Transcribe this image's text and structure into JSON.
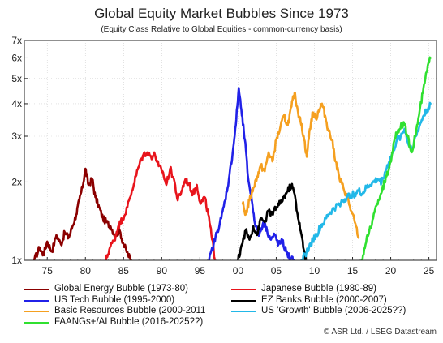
{
  "chart_data": {
    "type": "line",
    "title": "Global Equity Market Bubbles Since 1973",
    "subtitle": "(Equity Class Relative to Global Equities - common-currency basis)",
    "y_scale": "log",
    "ylim": [
      1,
      7
    ],
    "y_ticks": [
      "1x",
      "2x",
      "3x",
      "4x",
      "5x",
      "6x",
      "7x"
    ],
    "y_tick_values": [
      1,
      2,
      3,
      4,
      5,
      6,
      7
    ],
    "xlim": [
      1972,
      2026
    ],
    "x_ticks": [
      "75",
      "80",
      "85",
      "90",
      "95",
      "00",
      "05",
      "10",
      "15",
      "20",
      "25"
    ],
    "x_tick_values": [
      1975,
      1980,
      1985,
      1990,
      1995,
      2000,
      2005,
      2010,
      2015,
      2020,
      2025
    ],
    "grid": true,
    "series": [
      {
        "name": "Global Energy Bubble (1973-80)",
        "color": "#8b0000",
        "points": [
          [
            1973.3,
            1.0
          ],
          [
            1974.0,
            1.12
          ],
          [
            1974.5,
            1.05
          ],
          [
            1975.0,
            1.18
          ],
          [
            1975.6,
            1.08
          ],
          [
            1976.2,
            1.25
          ],
          [
            1976.8,
            1.15
          ],
          [
            1977.3,
            1.28
          ],
          [
            1977.8,
            1.22
          ],
          [
            1978.3,
            1.35
          ],
          [
            1978.8,
            1.5
          ],
          [
            1979.2,
            1.7
          ],
          [
            1979.6,
            1.9
          ],
          [
            1980.0,
            2.25
          ],
          [
            1980.4,
            1.95
          ],
          [
            1980.9,
            2.05
          ],
          [
            1981.3,
            1.75
          ],
          [
            1981.8,
            1.6
          ],
          [
            1982.3,
            1.45
          ],
          [
            1982.8,
            1.4
          ],
          [
            1983.3,
            1.35
          ],
          [
            1983.9,
            1.25
          ],
          [
            1984.5,
            1.3
          ],
          [
            1985.0,
            1.15
          ],
          [
            1985.6,
            1.05
          ],
          [
            1986.0,
            1.0
          ]
        ]
      },
      {
        "name": "Japanese Bubble (1980-89)",
        "color": "#e8141c",
        "points": [
          [
            1982.7,
            1.0
          ],
          [
            1983.2,
            1.12
          ],
          [
            1983.8,
            1.2
          ],
          [
            1984.3,
            1.35
          ],
          [
            1984.9,
            1.45
          ],
          [
            1985.5,
            1.6
          ],
          [
            1986.1,
            1.85
          ],
          [
            1986.6,
            2.1
          ],
          [
            1987.1,
            2.35
          ],
          [
            1987.6,
            2.55
          ],
          [
            1988.1,
            2.6
          ],
          [
            1988.6,
            2.5
          ],
          [
            1989.1,
            2.55
          ],
          [
            1989.6,
            2.3
          ],
          [
            1990.1,
            2.2
          ],
          [
            1990.6,
            1.95
          ],
          [
            1991.1,
            2.25
          ],
          [
            1991.6,
            2.05
          ],
          [
            1992.1,
            1.7
          ],
          [
            1992.6,
            1.85
          ],
          [
            1993.1,
            2.05
          ],
          [
            1993.6,
            1.95
          ],
          [
            1994.1,
            1.8
          ],
          [
            1994.6,
            1.95
          ],
          [
            1995.1,
            1.65
          ],
          [
            1995.6,
            1.75
          ],
          [
            1996.1,
            1.5
          ],
          [
            1996.6,
            1.2
          ],
          [
            1997.0,
            1.0
          ]
        ]
      },
      {
        "name": "US Tech Bubble (1995-2000)",
        "color": "#2121e8",
        "points": [
          [
            1996.2,
            1.0
          ],
          [
            1996.8,
            1.15
          ],
          [
            1997.3,
            1.3
          ],
          [
            1997.8,
            1.45
          ],
          [
            1998.3,
            1.7
          ],
          [
            1998.8,
            2.05
          ],
          [
            1999.3,
            2.6
          ],
          [
            1999.7,
            3.3
          ],
          [
            2000.1,
            4.6
          ],
          [
            2000.5,
            3.6
          ],
          [
            2000.9,
            2.9
          ],
          [
            2001.3,
            2.1
          ],
          [
            2001.8,
            1.7
          ],
          [
            2002.3,
            1.35
          ],
          [
            2002.8,
            1.25
          ],
          [
            2003.3,
            1.4
          ],
          [
            2003.8,
            1.3
          ],
          [
            2004.3,
            1.2
          ],
          [
            2004.8,
            1.25
          ],
          [
            2005.3,
            1.15
          ],
          [
            2005.8,
            1.18
          ],
          [
            2006.3,
            1.08
          ],
          [
            2006.8,
            1.02
          ],
          [
            2007.3,
            1.0
          ]
        ]
      },
      {
        "name": "EZ Banks Bubble (2000-2007)",
        "color": "#000000",
        "points": [
          [
            2000.0,
            1.0
          ],
          [
            2000.5,
            1.15
          ],
          [
            2001.0,
            1.3
          ],
          [
            2001.5,
            1.2
          ],
          [
            2002.0,
            1.35
          ],
          [
            2002.5,
            1.25
          ],
          [
            2003.0,
            1.45
          ],
          [
            2003.5,
            1.4
          ],
          [
            2004.0,
            1.55
          ],
          [
            2004.5,
            1.5
          ],
          [
            2005.0,
            1.6
          ],
          [
            2005.5,
            1.65
          ],
          [
            2006.0,
            1.75
          ],
          [
            2006.5,
            1.85
          ],
          [
            2007.0,
            1.95
          ],
          [
            2007.4,
            1.8
          ],
          [
            2007.8,
            1.5
          ],
          [
            2008.2,
            1.3
          ],
          [
            2008.6,
            1.1
          ],
          [
            2008.9,
            1.0
          ]
        ]
      },
      {
        "name": "Basic Resources Bubble (2000-2011",
        "color": "#f5a020",
        "points": [
          [
            2000.6,
            1.65
          ],
          [
            2001.0,
            1.5
          ],
          [
            2001.5,
            1.7
          ],
          [
            2002.0,
            1.9
          ],
          [
            2002.5,
            2.1
          ],
          [
            2003.0,
            2.3
          ],
          [
            2003.5,
            2.2
          ],
          [
            2004.0,
            2.6
          ],
          [
            2004.5,
            2.4
          ],
          [
            2005.0,
            2.9
          ],
          [
            2005.5,
            3.2
          ],
          [
            2006.0,
            3.6
          ],
          [
            2006.5,
            3.3
          ],
          [
            2007.0,
            3.9
          ],
          [
            2007.4,
            4.4
          ],
          [
            2007.8,
            3.8
          ],
          [
            2008.2,
            3.4
          ],
          [
            2008.6,
            3.0
          ],
          [
            2009.0,
            2.5
          ],
          [
            2009.4,
            3.2
          ],
          [
            2009.8,
            3.7
          ],
          [
            2010.2,
            3.5
          ],
          [
            2010.6,
            3.8
          ],
          [
            2011.0,
            4.0
          ],
          [
            2011.4,
            3.6
          ],
          [
            2011.8,
            3.2
          ],
          [
            2012.3,
            2.9
          ],
          [
            2012.8,
            2.4
          ],
          [
            2013.3,
            2.05
          ],
          [
            2013.8,
            1.9
          ],
          [
            2014.3,
            1.75
          ],
          [
            2014.8,
            1.55
          ],
          [
            2015.3,
            1.4
          ],
          [
            2015.8,
            1.22
          ]
        ]
      },
      {
        "name": "US 'Growth' Bubble (2006-2025??)",
        "color": "#22b8e8",
        "points": [
          [
            2008.3,
            1.0
          ],
          [
            2008.8,
            1.05
          ],
          [
            2009.3,
            1.12
          ],
          [
            2009.8,
            1.2
          ],
          [
            2010.3,
            1.25
          ],
          [
            2010.8,
            1.35
          ],
          [
            2011.3,
            1.4
          ],
          [
            2011.8,
            1.5
          ],
          [
            2012.3,
            1.55
          ],
          [
            2012.8,
            1.6
          ],
          [
            2013.3,
            1.65
          ],
          [
            2013.8,
            1.7
          ],
          [
            2014.3,
            1.75
          ],
          [
            2014.8,
            1.78
          ],
          [
            2015.3,
            1.8
          ],
          [
            2015.8,
            1.85
          ],
          [
            2016.3,
            1.8
          ],
          [
            2016.8,
            1.9
          ],
          [
            2017.3,
            1.95
          ],
          [
            2017.8,
            2.0
          ],
          [
            2018.3,
            2.05
          ],
          [
            2018.8,
            2.0
          ],
          [
            2019.3,
            2.2
          ],
          [
            2019.8,
            2.4
          ],
          [
            2020.3,
            2.6
          ],
          [
            2020.8,
            2.9
          ],
          [
            2021.3,
            3.0
          ],
          [
            2021.8,
            3.2
          ],
          [
            2022.3,
            2.8
          ],
          [
            2022.8,
            2.7
          ],
          [
            2023.3,
            3.0
          ],
          [
            2023.8,
            3.3
          ],
          [
            2024.3,
            3.6
          ],
          [
            2024.8,
            3.8
          ],
          [
            2025.2,
            4.0
          ]
        ]
      },
      {
        "name": "FAANGs+/AI Bubble (2016-2025??)",
        "color": "#30e030",
        "points": [
          [
            2016.2,
            1.0
          ],
          [
            2016.7,
            1.15
          ],
          [
            2017.2,
            1.3
          ],
          [
            2017.7,
            1.45
          ],
          [
            2018.2,
            1.65
          ],
          [
            2018.7,
            1.8
          ],
          [
            2019.2,
            2.0
          ],
          [
            2019.7,
            2.2
          ],
          [
            2020.2,
            2.6
          ],
          [
            2020.7,
            3.1
          ],
          [
            2021.2,
            3.2
          ],
          [
            2021.7,
            3.4
          ],
          [
            2022.2,
            3.0
          ],
          [
            2022.7,
            2.6
          ],
          [
            2023.2,
            3.0
          ],
          [
            2023.7,
            3.6
          ],
          [
            2024.2,
            4.4
          ],
          [
            2024.7,
            5.3
          ],
          [
            2025.2,
            6.0
          ]
        ]
      }
    ]
  },
  "legend": {
    "items": [
      {
        "label": "Global Energy Bubble (1973-80)",
        "color": "#8b0000"
      },
      {
        "label": "Japanese Bubble (1980-89)",
        "color": "#e8141c"
      },
      {
        "label": "US Tech Bubble (1995-2000)",
        "color": "#2121e8"
      },
      {
        "label": "EZ Banks Bubble (2000-2007)",
        "color": "#000000"
      },
      {
        "label": "Basic Resources Bubble (2000-2011",
        "color": "#f5a020"
      },
      {
        "label": "US 'Growth' Bubble (2006-2025??)",
        "color": "#22b8e8"
      },
      {
        "label": "FAANGs+/AI Bubble (2016-2025??)",
        "color": "#30e030"
      }
    ]
  },
  "source": "© ASR Ltd.  / LSEG Datastream"
}
